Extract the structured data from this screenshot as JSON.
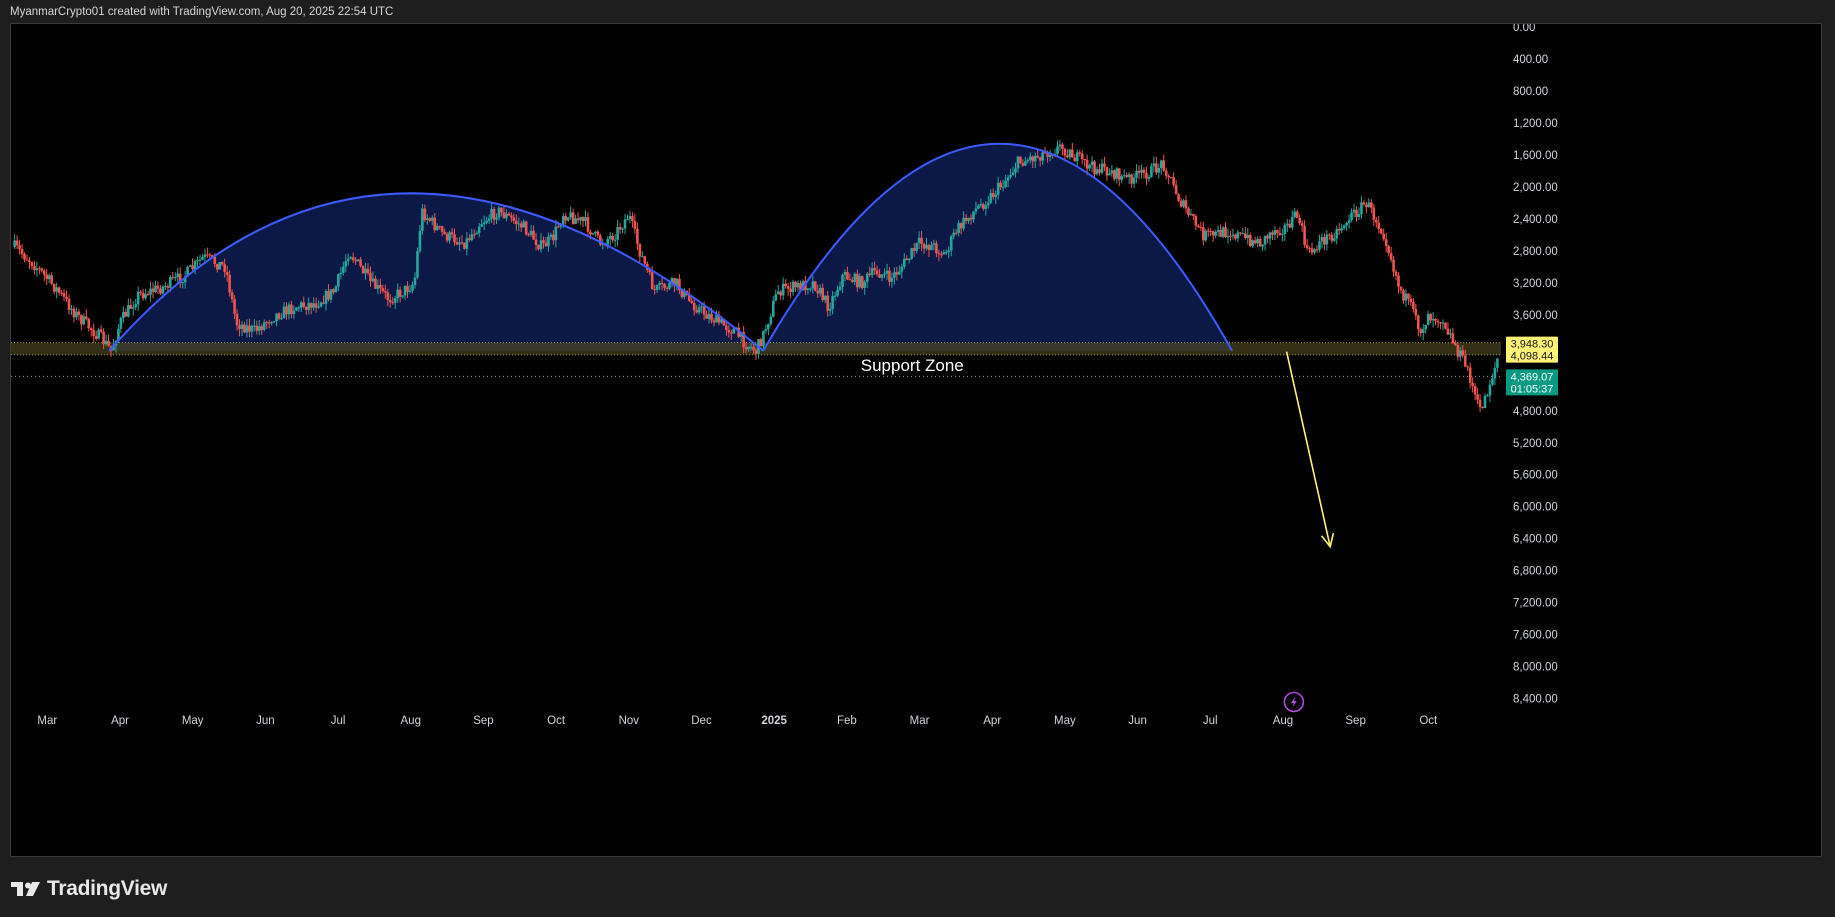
{
  "header": {
    "text": "MyanmarCrypto01 created with TradingView.com, Aug 20, 2025 22:54 UTC"
  },
  "footer": {
    "brand": "TradingView"
  },
  "colors": {
    "background": "#000000",
    "up_candle": "#26a69a",
    "down_candle": "#ef5350",
    "arc": "#3d5afe",
    "arc_fill": "#0d1a4a",
    "support_zone": "#4a4420",
    "arrow": "#fff176",
    "price_label_bg": "#fff176",
    "current_price_bg": "#089981",
    "lightning": "#b34ce0"
  },
  "chart_data": {
    "type": "candlestick",
    "scale": "inverted",
    "y_axis": {
      "ticks": [
        "0.00",
        "400.00",
        "800.00",
        "1,200.00",
        "1,600.00",
        "2,000.00",
        "2,400.00",
        "2,800.00",
        "3,200.00",
        "3,600.00",
        "4,800.00",
        "5,200.00",
        "5,600.00",
        "6,000.00",
        "6,400.00",
        "6,800.00",
        "7,200.00",
        "7,600.00",
        "8,000.00",
        "8,400.00"
      ],
      "tick_values": [
        0,
        400,
        800,
        1200,
        1600,
        2000,
        2400,
        2800,
        3200,
        3600,
        4800,
        5200,
        5600,
        6000,
        6400,
        6800,
        7200,
        7600,
        8000,
        8400
      ],
      "range": [
        0,
        8780
      ]
    },
    "x_axis": {
      "labels": [
        "Mar",
        "Apr",
        "May",
        "Jun",
        "Jul",
        "Aug",
        "Sep",
        "Oct",
        "Nov",
        "Dec",
        "2025",
        "Feb",
        "Mar",
        "Apr",
        "May",
        "Jun",
        "Jul",
        "Aug",
        "Sep",
        "Oct"
      ],
      "bold_labels": [
        "2025"
      ],
      "label_months": [
        2,
        3,
        4,
        5,
        6,
        7,
        8,
        9,
        10,
        11,
        12,
        13,
        14,
        15,
        16,
        17,
        18,
        19,
        20,
        21
      ],
      "range_months": [
        1.5,
        22.0
      ]
    },
    "price_labels": {
      "zone_top": "3,948.30",
      "zone_bottom": "4,098.44",
      "current_price": "4,369.07",
      "countdown": "01:05:37"
    },
    "support_zone": {
      "label": "Support Zone",
      "from": 3948.3,
      "to": 4098.44
    },
    "current_price_value": 4369.07,
    "arcs": [
      {
        "start": {
          "x": 2.85,
          "y": 4050
        },
        "peak": {
          "x": 7.0,
          "y": 2080
        },
        "end": {
          "x": 11.85,
          "y": 4050
        }
      },
      {
        "start": {
          "x": 11.85,
          "y": 4050
        },
        "peak": {
          "x": 15.1,
          "y": 1460
        },
        "end": {
          "x": 18.3,
          "y": 4050
        }
      }
    ],
    "arrow": {
      "from": {
        "x": 19.05,
        "y": 4060
      },
      "to": {
        "x": 19.65,
        "y": 6500
      }
    },
    "path_anchors": [
      [
        1.55,
        2750
      ],
      [
        1.8,
        2950
      ],
      [
        2.1,
        3250
      ],
      [
        2.4,
        3600
      ],
      [
        2.75,
        3900
      ],
      [
        2.88,
        4050
      ],
      [
        3.0,
        3700
      ],
      [
        3.25,
        3350
      ],
      [
        3.6,
        3250
      ],
      [
        3.9,
        3100
      ],
      [
        4.15,
        2880
      ],
      [
        4.45,
        3000
      ],
      [
        4.6,
        3700
      ],
      [
        4.85,
        3800
      ],
      [
        5.1,
        3620
      ],
      [
        5.4,
        3500
      ],
      [
        5.7,
        3450
      ],
      [
        5.95,
        3300
      ],
      [
        6.15,
        2800
      ],
      [
        6.45,
        3200
      ],
      [
        6.7,
        3400
      ],
      [
        6.9,
        3300
      ],
      [
        7.05,
        3200
      ],
      [
        7.15,
        2300
      ],
      [
        7.45,
        2600
      ],
      [
        7.75,
        2700
      ],
      [
        7.95,
        2450
      ],
      [
        8.2,
        2300
      ],
      [
        8.55,
        2500
      ],
      [
        8.8,
        2750
      ],
      [
        8.95,
        2650
      ],
      [
        9.1,
        2330
      ],
      [
        9.4,
        2450
      ],
      [
        9.6,
        2700
      ],
      [
        9.8,
        2600
      ],
      [
        10.0,
        2350
      ],
      [
        10.15,
        2800
      ],
      [
        10.35,
        3300
      ],
      [
        10.65,
        3200
      ],
      [
        10.8,
        3400
      ],
      [
        11.0,
        3550
      ],
      [
        11.25,
        3700
      ],
      [
        11.45,
        3800
      ],
      [
        11.6,
        3950
      ],
      [
        11.75,
        4050
      ],
      [
        11.85,
        3850
      ],
      [
        12.05,
        3300
      ],
      [
        12.3,
        3250
      ],
      [
        12.55,
        3200
      ],
      [
        12.75,
        3500
      ],
      [
        12.95,
        3100
      ],
      [
        13.2,
        3200
      ],
      [
        13.4,
        3050
      ],
      [
        13.6,
        3150
      ],
      [
        13.75,
        3000
      ],
      [
        14.0,
        2700
      ],
      [
        14.2,
        2750
      ],
      [
        14.35,
        2850
      ],
      [
        14.5,
        2550
      ],
      [
        14.75,
        2300
      ],
      [
        15.0,
        2100
      ],
      [
        15.15,
        1950
      ],
      [
        15.35,
        1700
      ],
      [
        15.5,
        1650
      ],
      [
        15.8,
        1550
      ],
      [
        15.95,
        1500
      ],
      [
        16.1,
        1600
      ],
      [
        16.35,
        1750
      ],
      [
        16.6,
        1800
      ],
      [
        16.85,
        1900
      ],
      [
        17.05,
        1850
      ],
      [
        17.2,
        1800
      ],
      [
        17.35,
        1700
      ],
      [
        17.6,
        2200
      ],
      [
        17.9,
        2600
      ],
      [
        18.05,
        2600
      ],
      [
        18.25,
        2550
      ],
      [
        18.5,
        2650
      ],
      [
        18.7,
        2700
      ],
      [
        18.85,
        2550
      ],
      [
        19.05,
        2500
      ],
      [
        19.2,
        2350
      ],
      [
        19.35,
        2850
      ],
      [
        19.5,
        2700
      ],
      [
        19.75,
        2550
      ],
      [
        19.9,
        2400
      ],
      [
        20.15,
        2200
      ],
      [
        20.4,
        2600
      ],
      [
        20.6,
        3250
      ],
      [
        20.75,
        3500
      ],
      [
        20.9,
        3800
      ],
      [
        21.0,
        3600
      ],
      [
        21.2,
        3650
      ],
      [
        21.35,
        3950
      ],
      [
        21.55,
        4300
      ],
      [
        21.7,
        4800
      ],
      [
        21.8,
        4600
      ],
      [
        21.95,
        4150
      ]
    ]
  }
}
